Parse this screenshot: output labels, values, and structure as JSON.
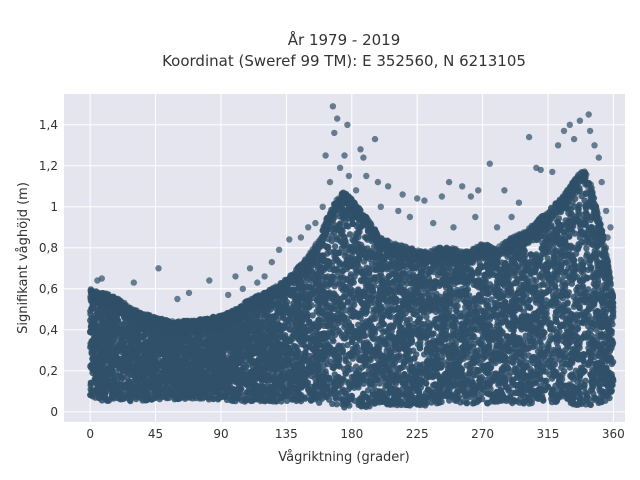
{
  "chart_data": {
    "type": "scatter",
    "title_line1": "År 1979 - 2019",
    "title_line2": "Koordinat (Sweref 99 TM): E 352560, N 6213105",
    "xlabel": "Vågriktning (grader)",
    "ylabel": "Signifikant våghöjd (m)",
    "xlim": [
      -18,
      368
    ],
    "ylim": [
      -0.05,
      1.55
    ],
    "x_ticks": [
      0,
      45,
      90,
      135,
      180,
      225,
      270,
      315,
      360
    ],
    "x_tick_labels": [
      "0",
      "45",
      "90",
      "135",
      "180",
      "225",
      "270",
      "315",
      "360"
    ],
    "y_ticks": [
      0,
      0.2,
      0.4,
      0.6,
      0.8,
      1.0,
      1.2,
      1.4
    ],
    "y_tick_labels": [
      "0",
      "0,2",
      "0,4",
      "0,6",
      "0,8",
      "1",
      "1,2",
      "1,4"
    ],
    "grid": true,
    "marker_color": "#2f5068",
    "plot_bg": "#e5e5ef",
    "envelope": {
      "x": [
        0,
        10,
        20,
        30,
        45,
        60,
        75,
        90,
        100,
        110,
        120,
        130,
        140,
        150,
        158,
        163,
        168,
        175,
        182,
        190,
        200,
        210,
        220,
        230,
        240,
        250,
        260,
        270,
        280,
        290,
        300,
        310,
        318,
        325,
        330,
        335,
        340,
        345,
        350,
        355,
        360
      ],
      "min": [
        0.07,
        0.05,
        0.06,
        0.05,
        0.06,
        0.06,
        0.06,
        0.06,
        0.05,
        0.05,
        0.05,
        0.05,
        0.05,
        0.05,
        0.04,
        0.03,
        0.02,
        0.02,
        0.02,
        0.02,
        0.03,
        0.03,
        0.03,
        0.03,
        0.04,
        0.04,
        0.04,
        0.04,
        0.04,
        0.04,
        0.04,
        0.04,
        0.04,
        0.04,
        0.03,
        0.03,
        0.03,
        0.03,
        0.04,
        0.05,
        0.08
      ],
      "max": [
        0.6,
        0.58,
        0.55,
        0.5,
        0.46,
        0.44,
        0.45,
        0.47,
        0.5,
        0.55,
        0.58,
        0.62,
        0.68,
        0.76,
        0.85,
        0.95,
        1.02,
        1.08,
        1.02,
        0.95,
        0.85,
        0.82,
        0.8,
        0.78,
        0.8,
        0.8,
        0.78,
        0.82,
        0.8,
        0.85,
        0.88,
        0.95,
        1.0,
        1.05,
        1.1,
        1.15,
        1.18,
        1.1,
        0.95,
        0.8,
        0.55
      ]
    },
    "outliers": [
      [
        167,
        1.49
      ],
      [
        170,
        1.43
      ],
      [
        177,
        1.4
      ],
      [
        168,
        1.36
      ],
      [
        186,
        1.28
      ],
      [
        196,
        1.33
      ],
      [
        162,
        1.25
      ],
      [
        188,
        1.24
      ],
      [
        175,
        1.25
      ],
      [
        172,
        1.19
      ],
      [
        190,
        1.15
      ],
      [
        198,
        1.12
      ],
      [
        205,
        1.1
      ],
      [
        215,
        1.06
      ],
      [
        225,
        1.04
      ],
      [
        230,
        1.03
      ],
      [
        242,
        1.05
      ],
      [
        247,
        1.12
      ],
      [
        256,
        1.1
      ],
      [
        262,
        1.05
      ],
      [
        267,
        1.08
      ],
      [
        275,
        1.21
      ],
      [
        285,
        1.08
      ],
      [
        295,
        1.02
      ],
      [
        302,
        1.34
      ],
      [
        307,
        1.19
      ],
      [
        310,
        1.18
      ],
      [
        318,
        1.17
      ],
      [
        322,
        1.3
      ],
      [
        326,
        1.37
      ],
      [
        330,
        1.4
      ],
      [
        333,
        1.33
      ],
      [
        337,
        1.42
      ],
      [
        343,
        1.45
      ],
      [
        344,
        1.37
      ],
      [
        347,
        1.3
      ],
      [
        350,
        1.24
      ],
      [
        352,
        1.12
      ],
      [
        355,
        0.98
      ],
      [
        358,
        0.9
      ],
      [
        356,
        0.85
      ],
      [
        47,
        0.7
      ],
      [
        82,
        0.64
      ],
      [
        110,
        0.7
      ],
      [
        125,
        0.73
      ],
      [
        130,
        0.79
      ],
      [
        137,
        0.84
      ],
      [
        145,
        0.85
      ],
      [
        150,
        0.9
      ],
      [
        155,
        0.92
      ],
      [
        100,
        0.66
      ],
      [
        120,
        0.66
      ],
      [
        5,
        0.64
      ],
      [
        8,
        0.65
      ],
      [
        30,
        0.63
      ],
      [
        60,
        0.55
      ],
      [
        68,
        0.58
      ],
      [
        95,
        0.57
      ],
      [
        105,
        0.6
      ],
      [
        115,
        0.63
      ],
      [
        250,
        0.9
      ],
      [
        265,
        0.95
      ],
      [
        280,
        0.9
      ],
      [
        290,
        0.95
      ],
      [
        236,
        0.92
      ],
      [
        212,
        0.98
      ],
      [
        220,
        0.95
      ],
      [
        200,
        1.0
      ],
      [
        183,
        1.08
      ],
      [
        178,
        1.15
      ],
      [
        160,
        1.0
      ],
      [
        165,
        1.12
      ]
    ]
  }
}
